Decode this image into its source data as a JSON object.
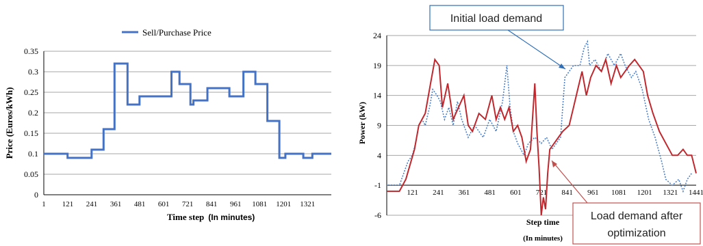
{
  "chart_data": [
    {
      "type": "line",
      "title": "",
      "xlabel": "Time step",
      "xlabel_note": "(In minutes)",
      "ylabel": "Price (Euros/kWh)",
      "ylim": [
        0,
        0.35
      ],
      "xlim": [
        1,
        1440
      ],
      "y_ticks": [
        "0",
        "0.05",
        "0.1",
        "0.15",
        "0.2",
        "0.25",
        "0.3",
        "0.35"
      ],
      "x_ticks": [
        "1",
        "121",
        "241",
        "361",
        "481",
        "601",
        "721",
        "841",
        "961",
        "1081",
        "1201",
        "1321"
      ],
      "grid": true,
      "legend_position": "top",
      "colors": {
        "series": "#4472c4",
        "grid": "#a6a6a6",
        "axis": "#000000"
      },
      "series": [
        {
          "name": "Sell/Purchase Price",
          "points": [
            [
              1,
              0.1
            ],
            [
              120,
              0.1
            ],
            [
              120,
              0.09
            ],
            [
              240,
              0.09
            ],
            [
              240,
              0.11
            ],
            [
              300,
              0.11
            ],
            [
              300,
              0.16
            ],
            [
              355,
              0.16
            ],
            [
              355,
              0.32
            ],
            [
              420,
              0.32
            ],
            [
              420,
              0.22
            ],
            [
              480,
              0.22
            ],
            [
              480,
              0.24
            ],
            [
              640,
              0.24
            ],
            [
              640,
              0.3
            ],
            [
              680,
              0.3
            ],
            [
              680,
              0.27
            ],
            [
              735,
              0.27
            ],
            [
              735,
              0.22
            ],
            [
              750,
              0.22
            ],
            [
              750,
              0.23
            ],
            [
              820,
              0.23
            ],
            [
              820,
              0.26
            ],
            [
              930,
              0.26
            ],
            [
              930,
              0.24
            ],
            [
              1000,
              0.24
            ],
            [
              1000,
              0.3
            ],
            [
              1060,
              0.3
            ],
            [
              1060,
              0.27
            ],
            [
              1120,
              0.27
            ],
            [
              1120,
              0.18
            ],
            [
              1180,
              0.18
            ],
            [
              1180,
              0.09
            ],
            [
              1210,
              0.09
            ],
            [
              1210,
              0.1
            ],
            [
              1300,
              0.1
            ],
            [
              1300,
              0.09
            ],
            [
              1345,
              0.09
            ],
            [
              1345,
              0.1
            ],
            [
              1440,
              0.1
            ]
          ]
        }
      ]
    },
    {
      "type": "line",
      "title": "",
      "xlabel": "Step time",
      "xlabel_note": "(In minutes)",
      "ylabel": "Power (kW)",
      "ylim": [
        -6,
        24
      ],
      "xlim": [
        1,
        1441
      ],
      "y_ticks": [
        "-6",
        "-1",
        "4",
        "9",
        "14",
        "19",
        "24"
      ],
      "x_ticks": [
        "121",
        "241",
        "361",
        "481",
        "601",
        "721",
        "841",
        "961",
        "1081",
        "1201",
        "1321",
        "1441"
      ],
      "grid": true,
      "colors": {
        "optimized": "#c0272d",
        "initial": "#4a7fc8",
        "grid": "#a6a6a6",
        "annotation": "#2e6fb7"
      },
      "annotations": [
        {
          "id": "initial",
          "text": "Initial load demand",
          "points_to_series": "initial"
        },
        {
          "id": "after",
          "text_line1": "Load demand after",
          "text_line2": "optimization",
          "points_to_series": "optimized"
        }
      ],
      "series": [
        {
          "name": "initial",
          "style": "dotted",
          "points": [
            [
              1,
              -1
            ],
            [
              60,
              -1
            ],
            [
              80,
              1
            ],
            [
              100,
              3
            ],
            [
              120,
              4
            ],
            [
              135,
              6
            ],
            [
              150,
              9
            ],
            [
              165,
              10
            ],
            [
              180,
              9
            ],
            [
              200,
              12
            ],
            [
              215,
              15
            ],
            [
              235,
              14
            ],
            [
              250,
              13
            ],
            [
              270,
              10
            ],
            [
              290,
              12
            ],
            [
              310,
              9
            ],
            [
              330,
              13
            ],
            [
              350,
              10
            ],
            [
              380,
              7
            ],
            [
              410,
              9
            ],
            [
              450,
              7
            ],
            [
              480,
              10
            ],
            [
              510,
              8
            ],
            [
              540,
              13
            ],
            [
              560,
              19
            ],
            [
              575,
              12
            ],
            [
              590,
              8
            ],
            [
              610,
              6
            ],
            [
              640,
              4
            ],
            [
              660,
              6
            ],
            [
              690,
              7
            ],
            [
              720,
              6
            ],
            [
              745,
              7
            ],
            [
              770,
              5
            ],
            [
              790,
              6
            ],
            [
              810,
              7
            ],
            [
              830,
              17
            ],
            [
              850,
              18
            ],
            [
              870,
              19
            ],
            [
              900,
              19
            ],
            [
              920,
              22
            ],
            [
              935,
              23
            ],
            [
              945,
              19
            ],
            [
              970,
              20
            ],
            [
              1000,
              18
            ],
            [
              1030,
              21
            ],
            [
              1060,
              19
            ],
            [
              1090,
              21
            ],
            [
              1110,
              19
            ],
            [
              1140,
              17
            ],
            [
              1160,
              18
            ],
            [
              1190,
              15
            ],
            [
              1220,
              10
            ],
            [
              1250,
              7
            ],
            [
              1280,
              3
            ],
            [
              1300,
              0
            ],
            [
              1330,
              -1
            ],
            [
              1360,
              0
            ],
            [
              1380,
              -2
            ],
            [
              1400,
              0
            ],
            [
              1420,
              1
            ]
          ]
        },
        {
          "name": "optimized",
          "style": "solid",
          "points": [
            [
              1,
              -2
            ],
            [
              60,
              -2
            ],
            [
              90,
              0
            ],
            [
              130,
              5
            ],
            [
              150,
              9
            ],
            [
              180,
              11
            ],
            [
              205,
              16
            ],
            [
              225,
              20
            ],
            [
              245,
              19
            ],
            [
              260,
              12
            ],
            [
              285,
              16
            ],
            [
              310,
              10
            ],
            [
              335,
              12
            ],
            [
              360,
              14
            ],
            [
              380,
              9
            ],
            [
              400,
              8
            ],
            [
              430,
              11
            ],
            [
              460,
              10
            ],
            [
              490,
              14
            ],
            [
              510,
              10
            ],
            [
              530,
              12
            ],
            [
              550,
              10
            ],
            [
              570,
              12
            ],
            [
              590,
              8
            ],
            [
              610,
              9
            ],
            [
              630,
              7
            ],
            [
              650,
              3
            ],
            [
              670,
              5
            ],
            [
              690,
              16
            ],
            [
              700,
              8
            ],
            [
              710,
              2
            ],
            [
              720,
              -6
            ],
            [
              730,
              -3
            ],
            [
              740,
              -5
            ],
            [
              750,
              1
            ],
            [
              760,
              5
            ],
            [
              780,
              6
            ],
            [
              800,
              7
            ],
            [
              820,
              8
            ],
            [
              850,
              9
            ],
            [
              870,
              12
            ],
            [
              890,
              15
            ],
            [
              910,
              18
            ],
            [
              930,
              14
            ],
            [
              950,
              17
            ],
            [
              975,
              19
            ],
            [
              1000,
              18
            ],
            [
              1020,
              20
            ],
            [
              1045,
              16
            ],
            [
              1070,
              19
            ],
            [
              1090,
              17
            ],
            [
              1110,
              18
            ],
            [
              1130,
              19
            ],
            [
              1155,
              20
            ],
            [
              1175,
              19
            ],
            [
              1195,
              18
            ],
            [
              1215,
              14
            ],
            [
              1240,
              11
            ],
            [
              1270,
              8
            ],
            [
              1300,
              6
            ],
            [
              1330,
              4
            ],
            [
              1355,
              4
            ],
            [
              1380,
              5
            ],
            [
              1400,
              4
            ],
            [
              1420,
              4
            ],
            [
              1441,
              1
            ]
          ]
        }
      ]
    }
  ]
}
